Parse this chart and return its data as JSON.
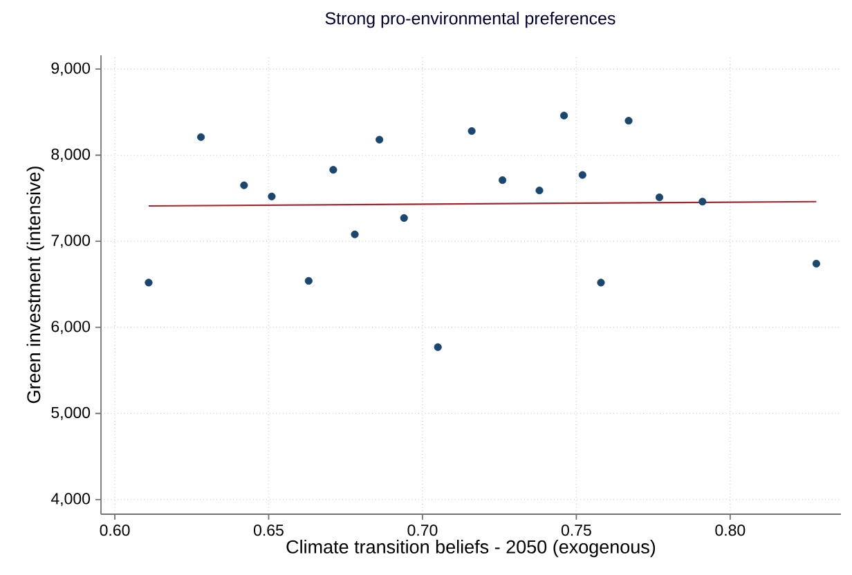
{
  "chart_data": {
    "type": "scatter",
    "title": "Strong pro-environmental preferences",
    "xlabel": "Climate transition beliefs - 2050 (exogenous)",
    "ylabel": "Green investment (intensive)",
    "xlim": [
      0.5955,
      0.836
    ],
    "ylim": [
      3830,
      9160
    ],
    "xticks": [
      {
        "value": 0.6,
        "label": "0.60"
      },
      {
        "value": 0.65,
        "label": "0.65"
      },
      {
        "value": 0.7,
        "label": "0.70"
      },
      {
        "value": 0.75,
        "label": "0.75"
      },
      {
        "value": 0.8,
        "label": "0.80"
      }
    ],
    "yticks": [
      {
        "value": 4000,
        "label": "4,000"
      },
      {
        "value": 5000,
        "label": "5,000"
      },
      {
        "value": 6000,
        "label": "6,000"
      },
      {
        "value": 7000,
        "label": "7,000"
      },
      {
        "value": 8000,
        "label": "8,000"
      },
      {
        "value": 9000,
        "label": "9,000"
      }
    ],
    "grid": true,
    "series": [
      {
        "color": "#1a476f",
        "marker": "circle",
        "x": [
          0.611,
          0.628,
          0.642,
          0.651,
          0.663,
          0.671,
          0.678,
          0.686,
          0.694,
          0.705,
          0.716,
          0.726,
          0.738,
          0.746,
          0.752,
          0.758,
          0.767,
          0.777,
          0.791,
          0.828
        ],
        "values": [
          6520,
          8210,
          7650,
          7520,
          6540,
          7830,
          7080,
          8180,
          7270,
          5770,
          8280,
          7710,
          7590,
          8460,
          7770,
          6520,
          8400,
          7510,
          7460,
          6740
        ]
      },
      {
        "type": "line",
        "color": "#a0262f",
        "marker": "none",
        "x": [
          0.611,
          0.828
        ],
        "values": [
          7410,
          7460
        ]
      }
    ]
  }
}
